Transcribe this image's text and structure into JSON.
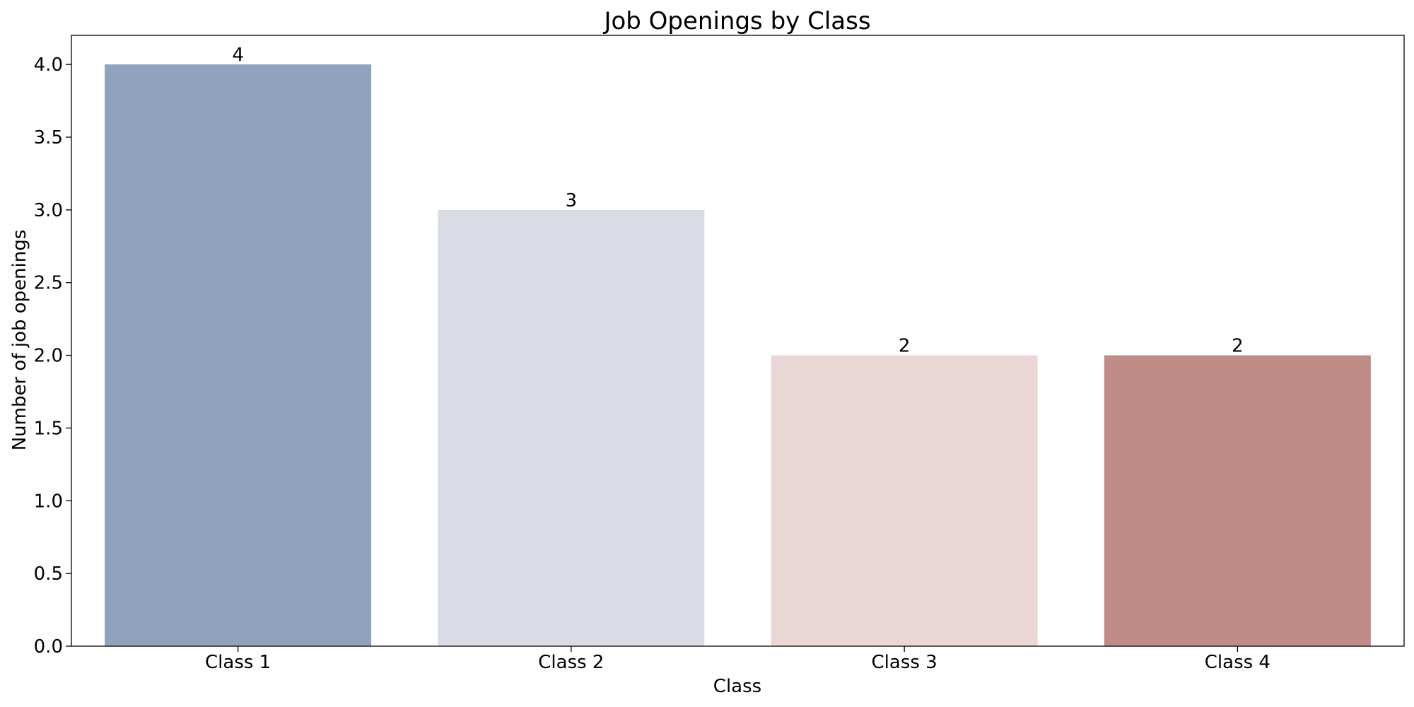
{
  "chart_data": {
    "type": "bar",
    "title": "Job Openings by Class",
    "xlabel": "Class",
    "ylabel": "Number of job openings",
    "categories": [
      "Class 1",
      "Class 2",
      "Class 3",
      "Class 4"
    ],
    "values": [
      4,
      3,
      2,
      2
    ],
    "value_labels": [
      "4",
      "3",
      "2",
      "2"
    ],
    "colors": [
      "#8fa3bf",
      "#d9dce5",
      "#e9d6d5",
      "#bf8c87"
    ],
    "ylim": [
      0,
      4.2
    ],
    "yticks": [
      0.0,
      0.5,
      1.0,
      1.5,
      2.0,
      2.5,
      3.0,
      3.5,
      4.0
    ],
    "ytick_labels": [
      "0.0",
      "0.5",
      "1.0",
      "1.5",
      "2.0",
      "2.5",
      "3.0",
      "3.5",
      "4.0"
    ],
    "grid": false,
    "legend": "none"
  }
}
